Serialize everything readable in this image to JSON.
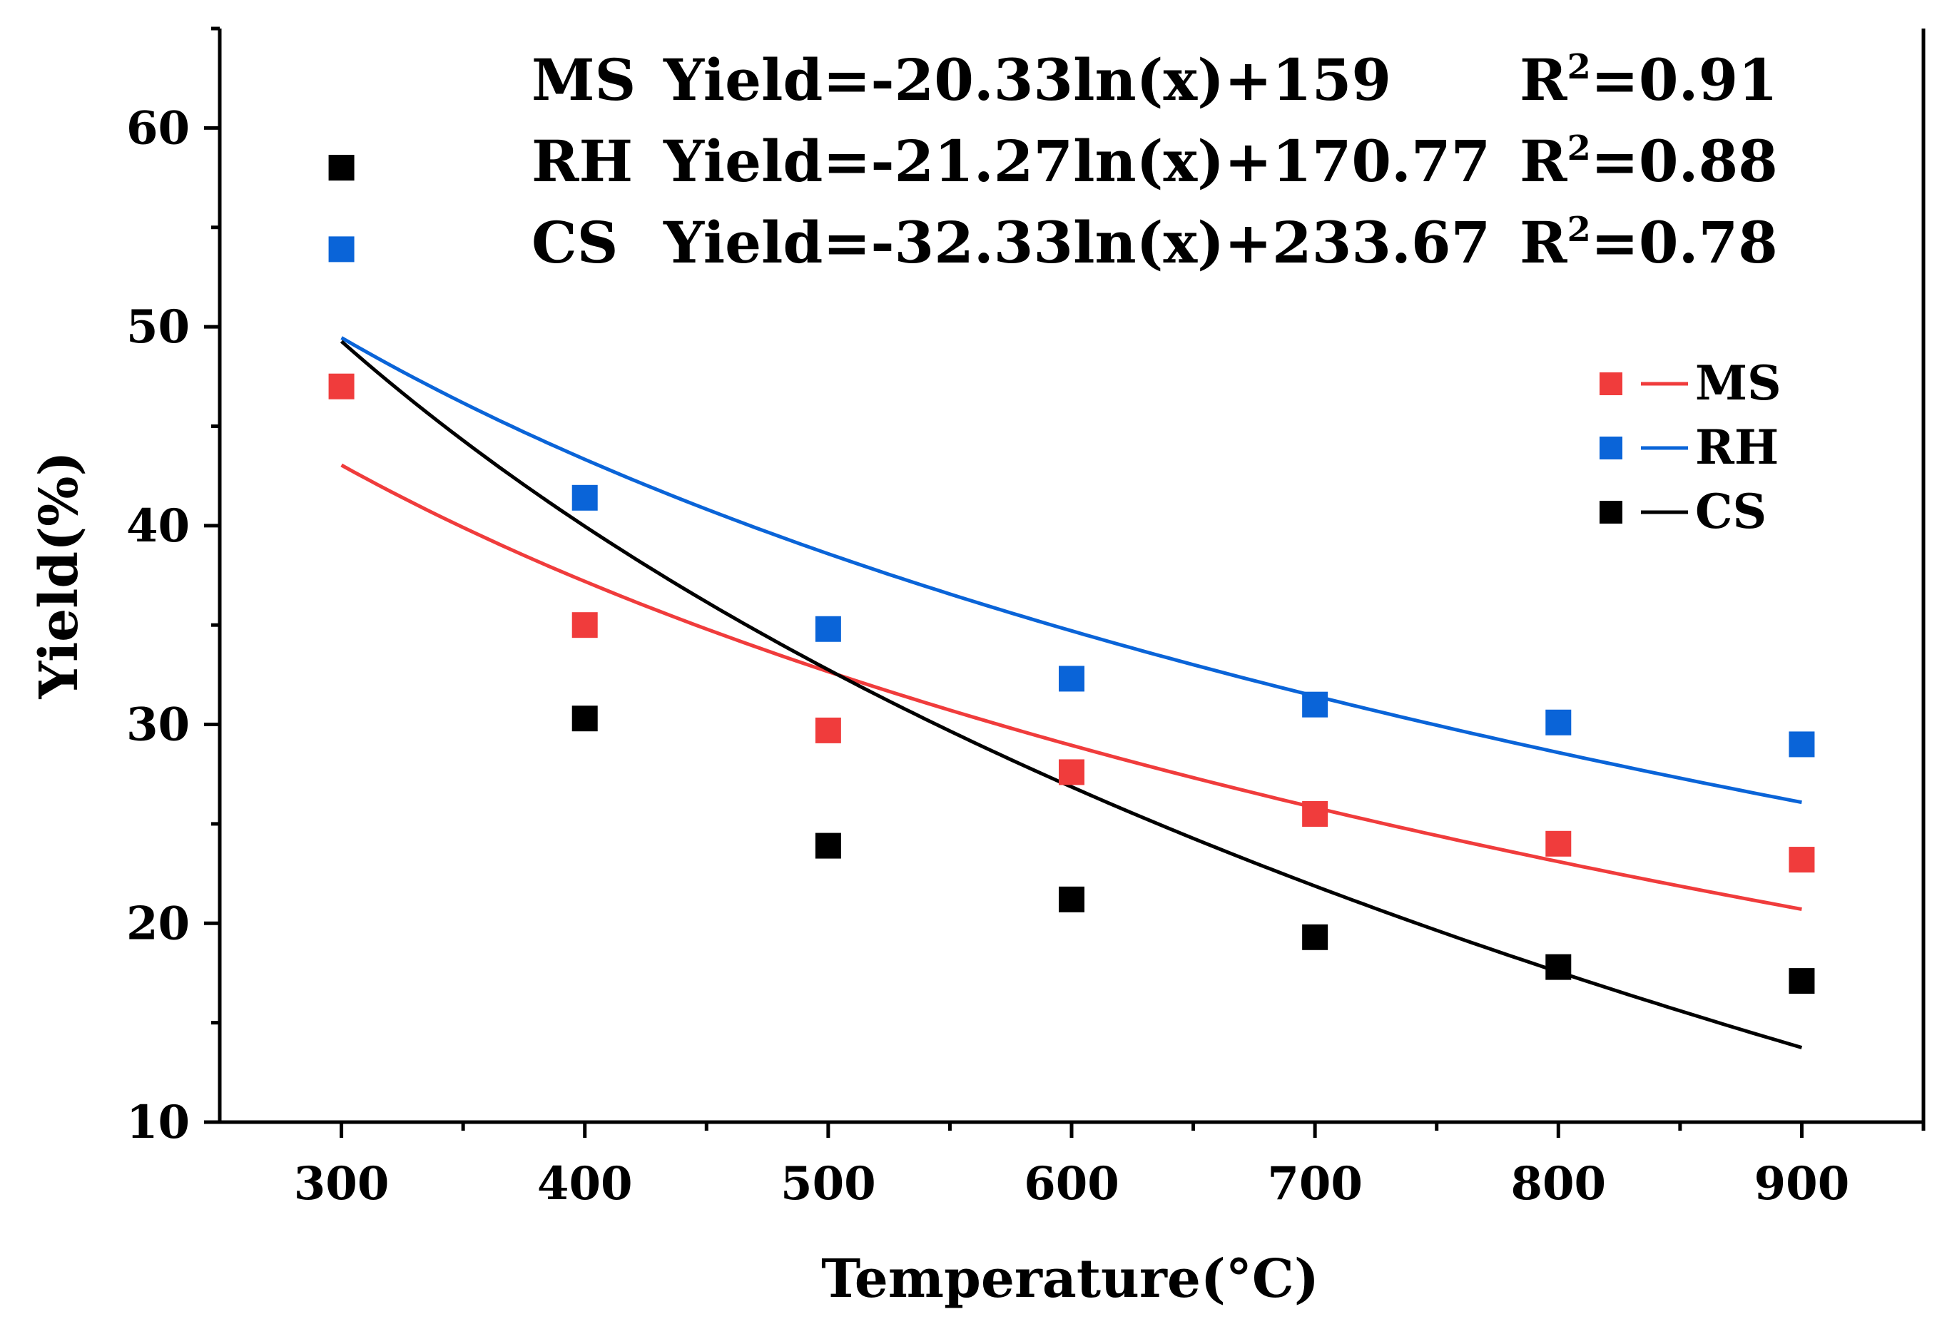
{
  "chart_data": {
    "type": "scatter",
    "xlabel": "Temperature(°C)",
    "ylabel": "Yield(%)",
    "xlim": [
      250,
      950
    ],
    "ylim": [
      10,
      65
    ],
    "x_ticks": [
      300,
      400,
      500,
      600,
      700,
      800,
      900
    ],
    "y_ticks": [
      10,
      20,
      30,
      40,
      50,
      60
    ],
    "grid": false,
    "legend_position": "right",
    "series": [
      {
        "name": "MS",
        "color": "#f03c3c",
        "x": [
          300,
          400,
          500,
          600,
          700,
          800,
          900
        ],
        "values": [
          47.0,
          35.0,
          29.7,
          27.6,
          25.5,
          24.0,
          23.2
        ],
        "fit": {
          "a": -20.33,
          "b": 159,
          "label": "MS",
          "equation": "Yield=-20.33ln(x)+159",
          "r2": "=0.91"
        }
      },
      {
        "name": "RH",
        "color": "#0a64d8",
        "x": [
          300,
          400,
          500,
          600,
          700,
          800,
          900
        ],
        "values": [
          53.9,
          41.4,
          34.8,
          32.3,
          31.0,
          30.1,
          29.0
        ],
        "fit": {
          "a": -21.27,
          "b": 170.77,
          "label": "RH",
          "equation": "Yield=-21.27ln(x)+170.77",
          "r2": "=0.88"
        }
      },
      {
        "name": "CS",
        "color": "#000000",
        "x": [
          300,
          400,
          500,
          600,
          700,
          800,
          900
        ],
        "values": [
          58.0,
          30.3,
          23.9,
          21.2,
          19.3,
          17.8,
          17.1
        ],
        "fit": {
          "a": -32.33,
          "b": 233.67,
          "label": "CS",
          "equation": "Yield=-32.33ln(x)+233.67",
          "r2": "=0.78"
        }
      }
    ],
    "annotations": [
      {
        "label": "MS",
        "equation": "Yield=-20.33ln(x)+159",
        "r_label": "R",
        "r_sup": "2",
        "r_value": "=0.91"
      },
      {
        "label": "RH",
        "equation": "Yield=-21.27ln(x)+170.77",
        "r_label": "R",
        "r_sup": "2",
        "r_value": "=0.88"
      },
      {
        "label": "CS",
        "equation": "Yield=-32.33ln(x)+233.67",
        "r_label": "R",
        "r_sup": "2",
        "r_value": "=0.78"
      }
    ]
  }
}
